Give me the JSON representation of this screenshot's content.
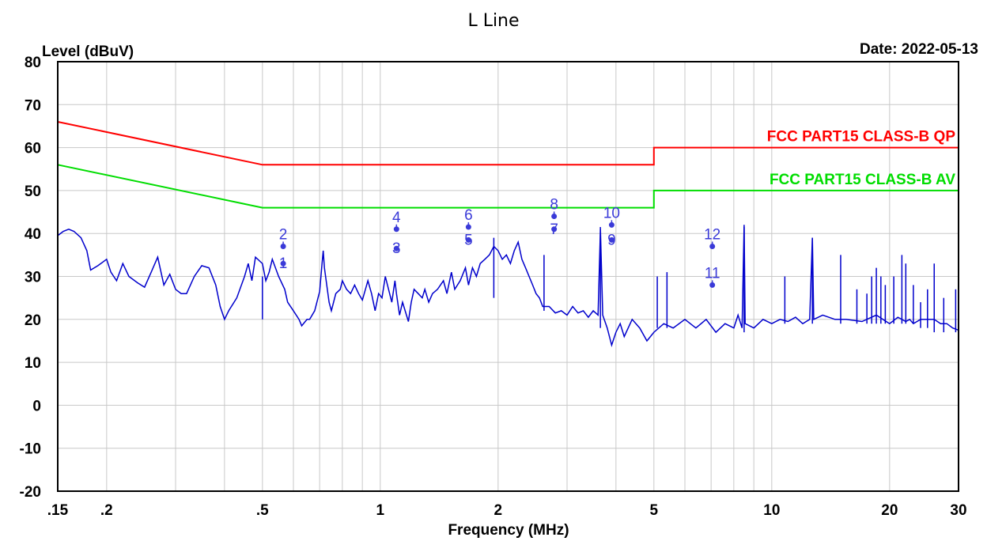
{
  "chart_data": {
    "type": "line",
    "title": "L Line",
    "ylabel": "Level (dBuV)",
    "xlabel": "Frequency (MHz)",
    "date_label": "Date: 2022-05-13",
    "x_scale": "log",
    "xlim": [
      0.15,
      30
    ],
    "ylim": [
      -20,
      80
    ],
    "grid": true,
    "x_ticks": [
      {
        "v": 0.15,
        "label": ".15"
      },
      {
        "v": 0.2,
        "label": ".2"
      },
      {
        "v": 0.5,
        "label": ".5"
      },
      {
        "v": 1,
        "label": "1"
      },
      {
        "v": 2,
        "label": "2"
      },
      {
        "v": 5,
        "label": "5"
      },
      {
        "v": 10,
        "label": "10"
      },
      {
        "v": 20,
        "label": "20"
      },
      {
        "v": 30,
        "label": "30"
      }
    ],
    "x_minor_grid": [
      0.15,
      0.2,
      0.3,
      0.4,
      0.5,
      0.6,
      0.7,
      0.8,
      0.9,
      1,
      2,
      3,
      4,
      5,
      6,
      7,
      8,
      9,
      10,
      20,
      30
    ],
    "y_ticks": [
      80,
      70,
      60,
      50,
      40,
      30,
      20,
      10,
      0,
      -10,
      -20
    ],
    "limits": [
      {
        "name": "FCC PART15 CLASS-B QP",
        "color": "#ff0000",
        "points": [
          [
            0.15,
            66
          ],
          [
            0.5,
            56
          ],
          [
            5,
            56
          ],
          [
            5,
            60
          ],
          [
            30,
            60
          ]
        ]
      },
      {
        "name": "FCC PART15 CLASS-B AV",
        "color": "#00dd00",
        "points": [
          [
            0.15,
            56
          ],
          [
            0.5,
            46
          ],
          [
            5,
            46
          ],
          [
            5,
            50
          ],
          [
            30,
            50
          ]
        ]
      }
    ],
    "series": [
      {
        "color": "#0000cc",
        "points": [
          [
            0.15,
            39.5
          ],
          [
            0.155,
            40.5
          ],
          [
            0.16,
            41
          ],
          [
            0.165,
            40.5
          ],
          [
            0.172,
            39
          ],
          [
            0.178,
            36
          ],
          [
            0.182,
            31.5
          ],
          [
            0.19,
            32.5
          ],
          [
            0.2,
            34
          ],
          [
            0.205,
            31
          ],
          [
            0.212,
            29
          ],
          [
            0.22,
            33
          ],
          [
            0.228,
            30
          ],
          [
            0.24,
            28.5
          ],
          [
            0.25,
            27.5
          ],
          [
            0.26,
            31
          ],
          [
            0.27,
            34.5
          ],
          [
            0.28,
            28
          ],
          [
            0.29,
            30.5
          ],
          [
            0.3,
            27
          ],
          [
            0.31,
            26
          ],
          [
            0.32,
            26
          ],
          [
            0.335,
            30
          ],
          [
            0.35,
            32.5
          ],
          [
            0.365,
            32
          ],
          [
            0.38,
            28
          ],
          [
            0.39,
            23
          ],
          [
            0.4,
            20
          ],
          [
            0.41,
            22
          ],
          [
            0.43,
            25
          ],
          [
            0.45,
            30
          ],
          [
            0.46,
            33
          ],
          [
            0.47,
            29
          ],
          [
            0.48,
            34.5
          ],
          [
            0.5,
            33
          ],
          [
            0.51,
            29
          ],
          [
            0.52,
            31
          ],
          [
            0.53,
            34
          ],
          [
            0.55,
            30
          ],
          [
            0.57,
            27
          ],
          [
            0.58,
            24
          ],
          [
            0.6,
            22
          ],
          [
            0.62,
            20
          ],
          [
            0.63,
            18.5
          ],
          [
            0.65,
            20
          ],
          [
            0.66,
            20
          ],
          [
            0.68,
            22
          ],
          [
            0.7,
            26.5
          ],
          [
            0.71,
            33
          ],
          [
            0.715,
            36
          ],
          [
            0.72,
            32
          ],
          [
            0.74,
            24
          ],
          [
            0.75,
            22
          ],
          [
            0.77,
            26
          ],
          [
            0.79,
            27
          ],
          [
            0.8,
            29
          ],
          [
            0.82,
            27
          ],
          [
            0.84,
            26
          ],
          [
            0.86,
            28
          ],
          [
            0.88,
            26
          ],
          [
            0.9,
            24.5
          ],
          [
            0.93,
            29
          ],
          [
            0.95,
            26
          ],
          [
            0.97,
            22
          ],
          [
            0.99,
            26
          ],
          [
            1.01,
            25
          ],
          [
            1.03,
            30
          ],
          [
            1.05,
            27
          ],
          [
            1.07,
            24
          ],
          [
            1.09,
            29
          ],
          [
            1.1,
            26
          ],
          [
            1.12,
            21
          ],
          [
            1.14,
            24
          ],
          [
            1.18,
            19.5
          ],
          [
            1.2,
            24
          ],
          [
            1.22,
            27
          ],
          [
            1.25,
            26
          ],
          [
            1.28,
            25
          ],
          [
            1.3,
            27
          ],
          [
            1.33,
            24
          ],
          [
            1.36,
            26
          ],
          [
            1.4,
            27
          ],
          [
            1.45,
            29
          ],
          [
            1.48,
            26
          ],
          [
            1.52,
            31
          ],
          [
            1.55,
            27
          ],
          [
            1.6,
            29
          ],
          [
            1.65,
            32
          ],
          [
            1.68,
            28
          ],
          [
            1.72,
            32
          ],
          [
            1.76,
            30
          ],
          [
            1.8,
            33
          ],
          [
            1.85,
            34
          ],
          [
            1.9,
            35
          ],
          [
            1.95,
            37
          ],
          [
            2.0,
            36
          ],
          [
            2.05,
            34
          ],
          [
            2.1,
            35
          ],
          [
            2.15,
            33
          ],
          [
            2.2,
            36
          ],
          [
            2.25,
            38
          ],
          [
            2.3,
            34
          ],
          [
            2.35,
            32
          ],
          [
            2.4,
            30
          ],
          [
            2.45,
            28
          ],
          [
            2.5,
            26
          ],
          [
            2.55,
            25
          ],
          [
            2.6,
            23
          ],
          [
            2.7,
            23
          ],
          [
            2.8,
            21.5
          ],
          [
            2.9,
            22
          ],
          [
            3.0,
            21
          ],
          [
            3.1,
            23
          ],
          [
            3.2,
            21.5
          ],
          [
            3.3,
            22
          ],
          [
            3.4,
            20.5
          ],
          [
            3.5,
            22
          ],
          [
            3.6,
            21
          ],
          [
            3.65,
            41
          ],
          [
            3.7,
            21
          ],
          [
            3.8,
            18
          ],
          [
            3.9,
            14
          ],
          [
            4.0,
            17
          ],
          [
            4.1,
            19
          ],
          [
            4.2,
            16
          ],
          [
            4.4,
            20
          ],
          [
            4.6,
            18
          ],
          [
            4.8,
            15
          ],
          [
            5.0,
            17
          ],
          [
            5.3,
            19
          ],
          [
            5.6,
            18
          ],
          [
            6.0,
            20
          ],
          [
            6.4,
            18
          ],
          [
            6.8,
            20
          ],
          [
            7.2,
            17
          ],
          [
            7.6,
            19
          ],
          [
            8.0,
            18
          ],
          [
            8.2,
            21
          ],
          [
            8.4,
            18
          ],
          [
            8.5,
            42
          ],
          [
            8.55,
            19
          ],
          [
            9.0,
            18
          ],
          [
            9.5,
            20
          ],
          [
            10.0,
            19
          ],
          [
            10.5,
            20
          ],
          [
            11.0,
            19.5
          ],
          [
            11.5,
            20.5
          ],
          [
            12.0,
            19
          ],
          [
            12.5,
            20
          ],
          [
            12.7,
            39
          ],
          [
            12.8,
            20
          ],
          [
            13.5,
            21
          ],
          [
            14.5,
            20
          ],
          [
            15.5,
            20
          ],
          [
            17.0,
            19.5
          ],
          [
            18.5,
            21
          ],
          [
            20.0,
            19
          ],
          [
            21.0,
            20.5
          ],
          [
            22.0,
            19.5
          ],
          [
            22.5,
            20
          ],
          [
            23.0,
            19
          ],
          [
            23.5,
            19.5
          ],
          [
            24.0,
            20
          ],
          [
            24.5,
            20
          ],
          [
            25.0,
            20
          ],
          [
            26.0,
            20
          ],
          [
            27.0,
            19
          ],
          [
            28.0,
            19
          ],
          [
            29.0,
            18
          ],
          [
            30.0,
            17.5
          ]
        ]
      }
    ],
    "spikes": [
      [
        0.5,
        20,
        30
      ],
      [
        1.95,
        25,
        39
      ],
      [
        2.62,
        22,
        35
      ],
      [
        3.65,
        18,
        41.5
      ],
      [
        5.1,
        18,
        30
      ],
      [
        5.4,
        18,
        31
      ],
      [
        8.5,
        17,
        41.5
      ],
      [
        12.7,
        19,
        39
      ],
      [
        10.8,
        19,
        30
      ],
      [
        15.0,
        19,
        35
      ],
      [
        18.5,
        19,
        32
      ],
      [
        16.5,
        19,
        27
      ],
      [
        17.5,
        19,
        26
      ],
      [
        18.0,
        19,
        30
      ],
      [
        19.5,
        19,
        28
      ],
      [
        20.5,
        19,
        30
      ],
      [
        21.5,
        19,
        35
      ],
      [
        23.0,
        19,
        28
      ],
      [
        25.0,
        18,
        27
      ],
      [
        26.0,
        17,
        33
      ],
      [
        27.5,
        17,
        25
      ],
      [
        29.5,
        17,
        27
      ],
      [
        19.0,
        19,
        30
      ],
      [
        22.0,
        19,
        33
      ],
      [
        24.0,
        18,
        24
      ]
    ],
    "markers": [
      {
        "label": "1",
        "x": 0.565,
        "y": 33,
        "side": "none"
      },
      {
        "label": "2",
        "x": 0.565,
        "y": 37,
        "side": "up"
      },
      {
        "label": "3",
        "x": 1.1,
        "y": 36.5,
        "side": "none"
      },
      {
        "label": "4",
        "x": 1.1,
        "y": 41,
        "side": "up"
      },
      {
        "label": "5",
        "x": 1.68,
        "y": 38.5,
        "side": "none"
      },
      {
        "label": "6",
        "x": 1.68,
        "y": 41.5,
        "side": "up"
      },
      {
        "label": "7",
        "x": 2.78,
        "y": 41,
        "side": "none"
      },
      {
        "label": "8",
        "x": 2.78,
        "y": 44,
        "side": "up"
      },
      {
        "label": "9",
        "x": 3.9,
        "y": 38.5,
        "side": "none"
      },
      {
        "label": "10",
        "x": 3.9,
        "y": 42,
        "side": "up"
      },
      {
        "label": "11",
        "x": 7.05,
        "y": 28,
        "side": "up"
      },
      {
        "label": "12",
        "x": 7.05,
        "y": 37,
        "side": "up"
      }
    ]
  }
}
